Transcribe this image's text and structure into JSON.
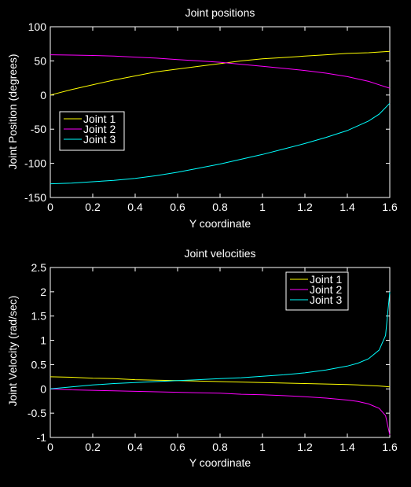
{
  "chart_data": [
    {
      "type": "line",
      "title": "Joint positions",
      "xlabel": "Y coordinate",
      "ylabel": "Joint Position (degrees)",
      "xlim": [
        0,
        1.6
      ],
      "ylim": [
        -150,
        100
      ],
      "xticks": [
        0,
        0.2,
        0.4,
        0.6,
        0.8,
        1,
        1.2,
        1.4,
        1.6
      ],
      "xtick_labels": [
        "0",
        "0.2",
        "0.4",
        "0.6",
        "0.8",
        "1",
        "1.2",
        "1.4",
        "1.6"
      ],
      "yticks": [
        100,
        50,
        0,
        -50,
        -100,
        -150
      ],
      "ytick_labels": [
        "100",
        "50",
        "0",
        "-50",
        "-100",
        "-150"
      ],
      "legend_position": "middle-left",
      "x": [
        0,
        0.1,
        0.2,
        0.3,
        0.4,
        0.5,
        0.6,
        0.7,
        0.8,
        0.9,
        1.0,
        1.1,
        1.2,
        1.3,
        1.4,
        1.5,
        1.55,
        1.6
      ],
      "series": [
        {
          "name": "Joint 1",
          "color": "#ffff00",
          "values": [
            0,
            8,
            15,
            22,
            28,
            34,
            38,
            42,
            46,
            50,
            53,
            55,
            57,
            59,
            61,
            62,
            63,
            64
          ]
        },
        {
          "name": "Joint 2",
          "color": "#ff00ff",
          "values": [
            59,
            58.5,
            58,
            57,
            55.5,
            54,
            52,
            50,
            48,
            45,
            42,
            39,
            36,
            32,
            27,
            20,
            15,
            10
          ]
        },
        {
          "name": "Joint 3",
          "color": "#00ffff",
          "values": [
            -130,
            -129,
            -127,
            -125,
            -122,
            -118,
            -113,
            -107,
            -101,
            -94,
            -87,
            -79,
            -71,
            -62,
            -52,
            -38,
            -28,
            -12
          ]
        }
      ]
    },
    {
      "type": "line",
      "title": "Joint velocities",
      "xlabel": "Y coordinate",
      "ylabel": "Joint Velocity (rad/sec)",
      "xlim": [
        0,
        1.6
      ],
      "ylim": [
        -1,
        2.5
      ],
      "xticks": [
        0,
        0.2,
        0.4,
        0.6,
        0.8,
        1,
        1.2,
        1.4,
        1.6
      ],
      "xtick_labels": [
        "0",
        "0.2",
        "0.4",
        "0.6",
        "0.8",
        "1",
        "1.2",
        "1.4",
        "1.6"
      ],
      "yticks": [
        2.5,
        2,
        1.5,
        1,
        0.5,
        0,
        -0.5,
        -1
      ],
      "ytick_labels": [
        "2.5",
        "2",
        "1.5",
        "1",
        "0.5",
        "0",
        "-0.5",
        "-1"
      ],
      "legend_position": "top-right",
      "x": [
        0,
        0.1,
        0.2,
        0.3,
        0.4,
        0.5,
        0.6,
        0.7,
        0.8,
        0.9,
        1.0,
        1.1,
        1.2,
        1.3,
        1.4,
        1.45,
        1.5,
        1.55,
        1.58,
        1.6
      ],
      "series": [
        {
          "name": "Joint 1",
          "color": "#ffff00",
          "values": [
            0.25,
            0.24,
            0.22,
            0.21,
            0.19,
            0.18,
            0.17,
            0.16,
            0.15,
            0.14,
            0.13,
            0.12,
            0.11,
            0.1,
            0.09,
            0.08,
            0.07,
            0.06,
            0.05,
            0.04
          ]
        },
        {
          "name": "Joint 2",
          "color": "#ff00ff",
          "values": [
            0,
            -0.02,
            -0.03,
            -0.04,
            -0.05,
            -0.06,
            -0.07,
            -0.08,
            -0.09,
            -0.11,
            -0.12,
            -0.14,
            -0.16,
            -0.19,
            -0.23,
            -0.26,
            -0.31,
            -0.4,
            -0.55,
            -0.95
          ]
        },
        {
          "name": "Joint 3",
          "color": "#00ffff",
          "values": [
            0,
            0.04,
            0.08,
            0.11,
            0.13,
            0.15,
            0.17,
            0.19,
            0.21,
            0.23,
            0.26,
            0.29,
            0.33,
            0.39,
            0.47,
            0.53,
            0.62,
            0.8,
            1.1,
            2.0
          ]
        }
      ]
    }
  ]
}
